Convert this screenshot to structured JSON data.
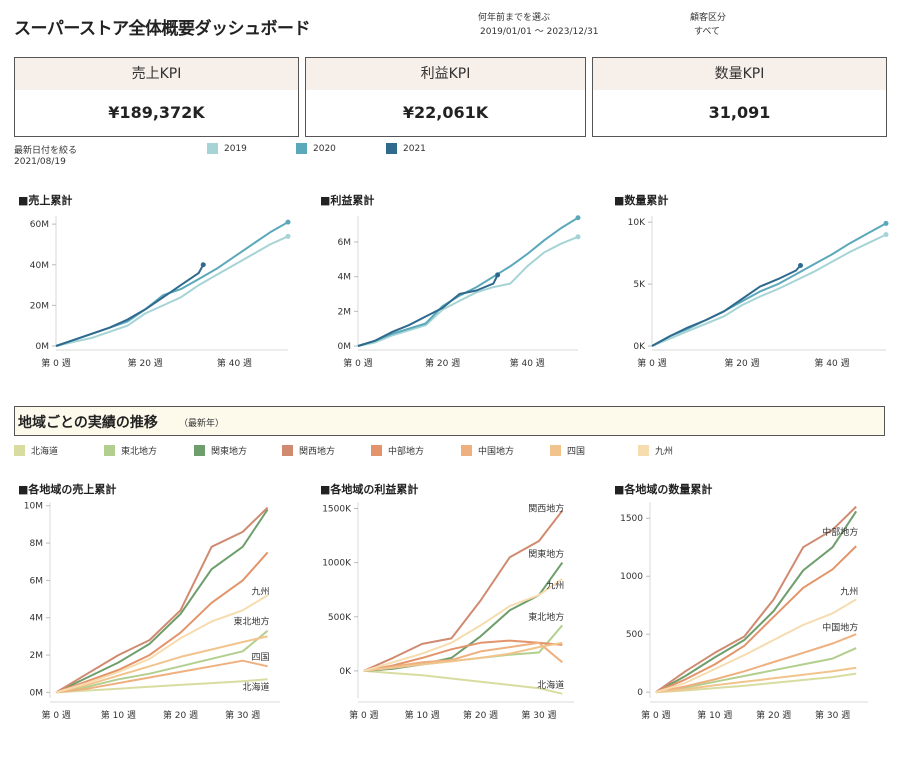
{
  "header": {
    "title": "スーパーストア全体概要ダッシュボード",
    "period_label": "何年前までを選ぶ",
    "period_value": "2019/01/01 ～ 2023/12/31",
    "segment_label": "顧客区分",
    "segment_value": "すべて"
  },
  "kpis": [
    {
      "label": "売上KPI",
      "value": "¥189,372K"
    },
    {
      "label": "利益KPI",
      "value": "¥22,061K"
    },
    {
      "label": "数量KPI",
      "value": "31,091"
    }
  ],
  "date_filter": {
    "label": "最新日付を絞る",
    "value": "2021/08/19"
  },
  "year_legend": [
    {
      "name": "2019",
      "color": "#a6d4d6"
    },
    {
      "name": "2020",
      "color": "#5aa8ba"
    },
    {
      "name": "2021",
      "color": "#2f6a8e"
    }
  ],
  "section": {
    "title": "地域ごとの実績の推移",
    "subtitle": "（最新年）"
  },
  "region_legend": [
    {
      "name": "北海道",
      "color": "#d9dca0"
    },
    {
      "name": "東北地方",
      "color": "#b3cf8f"
    },
    {
      "name": "関東地方",
      "color": "#6e9e6c"
    },
    {
      "name": "関西地方",
      "color": "#d08a70"
    },
    {
      "name": "中部地方",
      "color": "#e3946a"
    },
    {
      "name": "中国地方",
      "color": "#efb07f"
    },
    {
      "name": "四国",
      "color": "#f2c48d"
    },
    {
      "name": "九州",
      "color": "#f6dcae"
    }
  ],
  "chart_data": [
    {
      "type": "line",
      "title": "■売上累計",
      "x_ticks": [
        0,
        20,
        40
      ],
      "x_tick_labels": [
        "第 0 週",
        "第 20 週",
        "第 40 週"
      ],
      "xlim": [
        0,
        52
      ],
      "y_ticks": [
        0,
        20,
        40,
        60
      ],
      "y_tick_labels": [
        "0M",
        "20M",
        "40M",
        "60M"
      ],
      "ylim": [
        0,
        64
      ],
      "series": [
        {
          "name": "2019",
          "x": [
            0,
            4,
            8,
            12,
            16,
            20,
            24,
            28,
            32,
            36,
            40,
            44,
            48,
            52
          ],
          "values": [
            0,
            2,
            4,
            7,
            10,
            16,
            20,
            24,
            30,
            35,
            40,
            45,
            50,
            54
          ]
        },
        {
          "name": "2020",
          "x": [
            0,
            4,
            8,
            12,
            16,
            20,
            24,
            28,
            32,
            36,
            40,
            44,
            48,
            52
          ],
          "values": [
            0,
            3,
            6,
            9,
            12,
            18,
            25,
            28,
            33,
            38,
            44,
            50,
            56,
            61
          ]
        },
        {
          "name": "2021",
          "x": [
            0,
            4,
            8,
            12,
            16,
            20,
            24,
            28,
            32,
            33
          ],
          "values": [
            0,
            3,
            6,
            9,
            13,
            18,
            24,
            30,
            36,
            40
          ]
        }
      ]
    },
    {
      "type": "line",
      "title": "■利益累計",
      "x_ticks": [
        0,
        20,
        40
      ],
      "x_tick_labels": [
        "第 0 週",
        "第 20 週",
        "第 40 週"
      ],
      "xlim": [
        0,
        52
      ],
      "y_ticks": [
        0,
        2,
        4,
        6
      ],
      "y_tick_labels": [
        "0M",
        "2M",
        "4M",
        "6M"
      ],
      "ylim": [
        0,
        7.5
      ],
      "series": [
        {
          "name": "2019",
          "x": [
            0,
            4,
            8,
            12,
            16,
            20,
            24,
            28,
            32,
            36,
            40,
            44,
            48,
            52
          ],
          "values": [
            0,
            0.2,
            0.6,
            0.9,
            1.2,
            2.1,
            2.6,
            3.1,
            3.4,
            3.6,
            4.6,
            5.4,
            5.9,
            6.3
          ]
        },
        {
          "name": "2020",
          "x": [
            0,
            4,
            8,
            12,
            16,
            20,
            24,
            28,
            32,
            36,
            40,
            44,
            48,
            52
          ],
          "values": [
            0,
            0.3,
            0.7,
            1.0,
            1.3,
            2.3,
            2.9,
            3.4,
            4.0,
            4.6,
            5.3,
            6.1,
            6.8,
            7.4
          ]
        },
        {
          "name": "2021",
          "x": [
            0,
            4,
            8,
            12,
            16,
            20,
            24,
            28,
            32,
            33
          ],
          "values": [
            0,
            0.3,
            0.8,
            1.2,
            1.7,
            2.2,
            3.0,
            3.2,
            3.6,
            4.1
          ]
        }
      ]
    },
    {
      "type": "line",
      "title": "■数量累計",
      "x_ticks": [
        0,
        20,
        40
      ],
      "x_tick_labels": [
        "第 0 週",
        "第 20 週",
        "第 40 週"
      ],
      "xlim": [
        0,
        52
      ],
      "y_ticks": [
        0,
        5,
        10
      ],
      "y_tick_labels": [
        "0K",
        "5K",
        "10K"
      ],
      "ylim": [
        0,
        10.5
      ],
      "series": [
        {
          "name": "2019",
          "x": [
            0,
            4,
            8,
            12,
            16,
            20,
            24,
            28,
            32,
            36,
            40,
            44,
            48,
            52
          ],
          "values": [
            0,
            0.6,
            1.2,
            1.8,
            2.4,
            3.3,
            4.0,
            4.6,
            5.3,
            6.0,
            6.8,
            7.6,
            8.3,
            9.0
          ]
        },
        {
          "name": "2020",
          "x": [
            0,
            4,
            8,
            12,
            16,
            20,
            24,
            28,
            32,
            36,
            40,
            44,
            48,
            52
          ],
          "values": [
            0,
            0.8,
            1.4,
            2.1,
            2.8,
            3.6,
            4.4,
            5.0,
            5.8,
            6.6,
            7.4,
            8.3,
            9.1,
            9.9
          ]
        },
        {
          "name": "2021",
          "x": [
            0,
            4,
            8,
            12,
            16,
            20,
            24,
            28,
            32,
            33
          ],
          "values": [
            0,
            0.8,
            1.5,
            2.1,
            2.8,
            3.8,
            4.8,
            5.4,
            6.1,
            6.5
          ]
        }
      ]
    },
    {
      "type": "line",
      "title": "■各地域の売上累計",
      "x_ticks": [
        0,
        10,
        20,
        30
      ],
      "x_tick_labels": [
        "第 0 週",
        "第 10 週",
        "第 20 週",
        "第 30 週"
      ],
      "xlim": [
        -1,
        36
      ],
      "y_ticks": [
        0,
        2,
        4,
        6,
        8,
        10
      ],
      "y_tick_labels": [
        "0M",
        "2M",
        "4M",
        "6M",
        "8M",
        "10M"
      ],
      "ylim": [
        -0.3,
        10.2
      ],
      "series": [
        {
          "name": "北海道",
          "x": [
            0,
            5,
            10,
            15,
            20,
            25,
            30,
            34
          ],
          "values": [
            0,
            0.1,
            0.2,
            0.3,
            0.4,
            0.5,
            0.6,
            0.7
          ]
        },
        {
          "name": "東北地方",
          "x": [
            0,
            5,
            10,
            15,
            20,
            25,
            30,
            34
          ],
          "values": [
            0,
            0.3,
            0.7,
            1.0,
            1.4,
            1.8,
            2.2,
            3.3
          ]
        },
        {
          "name": "関東地方",
          "x": [
            0,
            5,
            10,
            15,
            20,
            25,
            30,
            34
          ],
          "values": [
            0,
            0.8,
            1.6,
            2.6,
            4.2,
            6.6,
            7.8,
            9.8
          ]
        },
        {
          "name": "関西地方",
          "x": [
            0,
            5,
            10,
            15,
            20,
            25,
            30,
            34
          ],
          "values": [
            0,
            1.0,
            2.0,
            2.8,
            4.4,
            7.8,
            8.6,
            9.9
          ]
        },
        {
          "name": "中部地方",
          "x": [
            0,
            5,
            10,
            15,
            20,
            25,
            30,
            34
          ],
          "values": [
            0,
            0.6,
            1.2,
            2.0,
            3.2,
            4.8,
            6.0,
            7.5
          ]
        },
        {
          "name": "中国地方",
          "x": [
            0,
            5,
            10,
            15,
            20,
            25,
            30,
            34
          ],
          "values": [
            0,
            0.2,
            0.5,
            0.8,
            1.1,
            1.4,
            1.7,
            1.4
          ]
        },
        {
          "name": "四国",
          "x": [
            0,
            5,
            10,
            15,
            20,
            25,
            30,
            34
          ],
          "values": [
            0,
            0.4,
            0.9,
            1.4,
            1.9,
            2.3,
            2.7,
            3.0
          ]
        },
        {
          "name": "九州",
          "x": [
            0,
            5,
            10,
            15,
            20,
            25,
            30,
            34
          ],
          "values": [
            0,
            0.5,
            1.1,
            1.8,
            2.9,
            3.8,
            4.4,
            5.2
          ]
        }
      ],
      "annotations": [
        {
          "text": "九州",
          "x": 34,
          "y": 5.4
        },
        {
          "text": "東北地方",
          "x": 34,
          "y": 3.8
        },
        {
          "text": "四国",
          "x": 34,
          "y": 1.9
        },
        {
          "text": "北海道",
          "x": 34,
          "y": 0.3
        }
      ]
    },
    {
      "type": "line",
      "title": "■各地域の利益累計",
      "x_ticks": [
        0,
        10,
        20,
        30
      ],
      "x_tick_labels": [
        "第 0 週",
        "第 10 週",
        "第 20 週",
        "第 30 週"
      ],
      "xlim": [
        -1,
        36
      ],
      "y_ticks": [
        0,
        500,
        1000,
        1500
      ],
      "y_tick_labels": [
        "0K",
        "500K",
        "1000K",
        "1500K"
      ],
      "ylim": [
        -250,
        1560
      ],
      "series": [
        {
          "name": "北海道",
          "x": [
            0,
            5,
            10,
            15,
            20,
            25,
            30,
            34
          ],
          "values": [
            0,
            -20,
            -40,
            -70,
            -100,
            -130,
            -160,
            -210
          ]
        },
        {
          "name": "東北地方",
          "x": [
            0,
            5,
            10,
            15,
            20,
            25,
            30,
            34
          ],
          "values": [
            0,
            30,
            60,
            90,
            120,
            150,
            170,
            420
          ]
        },
        {
          "name": "関東地方",
          "x": [
            0,
            5,
            10,
            15,
            20,
            25,
            30,
            34
          ],
          "values": [
            0,
            20,
            60,
            120,
            320,
            560,
            700,
            1000
          ]
        },
        {
          "name": "関西地方",
          "x": [
            0,
            5,
            10,
            15,
            20,
            25,
            30,
            34
          ],
          "values": [
            0,
            120,
            250,
            300,
            650,
            1050,
            1200,
            1480
          ]
        },
        {
          "name": "中部地方",
          "x": [
            0,
            5,
            10,
            15,
            20,
            25,
            30,
            34
          ],
          "values": [
            0,
            50,
            120,
            200,
            260,
            280,
            260,
            240
          ]
        },
        {
          "name": "中国地方",
          "x": [
            0,
            5,
            10,
            15,
            20,
            25,
            30,
            34
          ],
          "values": [
            0,
            40,
            80,
            100,
            180,
            220,
            260,
            80
          ]
        },
        {
          "name": "四国",
          "x": [
            0,
            5,
            10,
            15,
            20,
            25,
            30,
            34
          ],
          "values": [
            0,
            30,
            60,
            90,
            120,
            160,
            220,
            260
          ]
        },
        {
          "name": "九州",
          "x": [
            0,
            5,
            10,
            15,
            20,
            25,
            30,
            34
          ],
          "values": [
            0,
            80,
            160,
            260,
            420,
            600,
            700,
            850
          ]
        }
      ],
      "annotations": [
        {
          "text": "関西地方",
          "x": 34,
          "y": 1500
        },
        {
          "text": "関東地方",
          "x": 34,
          "y": 1080
        },
        {
          "text": "九州",
          "x": 34,
          "y": 790
        },
        {
          "text": "東北地方",
          "x": 34,
          "y": 500
        },
        {
          "text": "北海道",
          "x": 34,
          "y": -130
        }
      ]
    },
    {
      "type": "line",
      "title": "■各地域の数量累計",
      "x_ticks": [
        0,
        10,
        20,
        30
      ],
      "x_tick_labels": [
        "第 0 週",
        "第 10 週",
        "第 20 週",
        "第 30 週"
      ],
      "xlim": [
        -1,
        36
      ],
      "y_ticks": [
        0,
        500,
        1000,
        1500
      ],
      "y_tick_labels": [
        "0",
        "500",
        "1000",
        "1500"
      ],
      "ylim": [
        -50,
        1640
      ],
      "series": [
        {
          "name": "北海道",
          "x": [
            0,
            5,
            10,
            15,
            20,
            25,
            30,
            34
          ],
          "values": [
            0,
            15,
            35,
            55,
            80,
            105,
            130,
            160
          ]
        },
        {
          "name": "東北地方",
          "x": [
            0,
            5,
            10,
            15,
            20,
            25,
            30,
            34
          ],
          "values": [
            0,
            40,
            90,
            140,
            190,
            240,
            290,
            380
          ]
        },
        {
          "name": "関東地方",
          "x": [
            0,
            5,
            10,
            15,
            20,
            25,
            30,
            34
          ],
          "values": [
            0,
            140,
            300,
            450,
            700,
            1050,
            1250,
            1560
          ]
        },
        {
          "name": "関西地方",
          "x": [
            0,
            5,
            10,
            15,
            20,
            25,
            30,
            34
          ],
          "values": [
            0,
            180,
            340,
            480,
            800,
            1250,
            1400,
            1600
          ]
        },
        {
          "name": "中部地方",
          "x": [
            0,
            5,
            10,
            15,
            20,
            25,
            30,
            34
          ],
          "values": [
            0,
            110,
            240,
            400,
            650,
            900,
            1060,
            1260
          ]
        },
        {
          "name": "中国地方",
          "x": [
            0,
            5,
            10,
            15,
            20,
            25,
            30,
            34
          ],
          "values": [
            0,
            50,
            110,
            180,
            260,
            340,
            420,
            500
          ]
        },
        {
          "name": "四国",
          "x": [
            0,
            5,
            10,
            15,
            20,
            25,
            30,
            34
          ],
          "values": [
            0,
            25,
            60,
            90,
            120,
            150,
            180,
            210
          ]
        },
        {
          "name": "九州",
          "x": [
            0,
            5,
            10,
            15,
            20,
            25,
            30,
            34
          ],
          "values": [
            0,
            80,
            200,
            320,
            450,
            580,
            680,
            800
          ]
        }
      ],
      "annotations": [
        {
          "text": "中部地方",
          "x": 34,
          "y": 1380
        },
        {
          "text": "九州",
          "x": 34,
          "y": 870
        },
        {
          "text": "中国地方",
          "x": 34,
          "y": 560
        }
      ]
    }
  ]
}
